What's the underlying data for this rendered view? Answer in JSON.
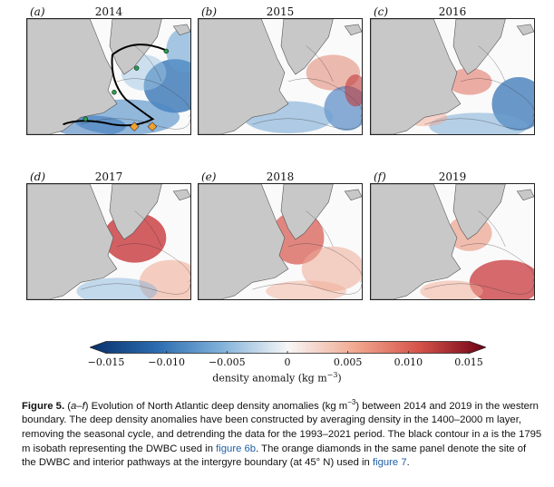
{
  "panels": [
    {
      "label": "(a)",
      "year": "2014"
    },
    {
      "label": "(b)",
      "year": "2015"
    },
    {
      "label": "(c)",
      "year": "2016"
    },
    {
      "label": "(d)",
      "year": "2017"
    },
    {
      "label": "(e)",
      "year": "2018"
    },
    {
      "label": "(f)",
      "year": "2019"
    }
  ],
  "colorbar": {
    "ticks": [
      "−0.015",
      "−0.010",
      "−0.005",
      "0",
      "0.005",
      "0.010",
      "0.015"
    ],
    "label_prefix": "density anomaly (kg m",
    "label_exp": "−3",
    "label_suffix": ")",
    "colors": {
      "neg_strong": "#1f4e8c",
      "neg_mid": "#6fa3d2",
      "neutral": "#f7f7f7",
      "pos_mid": "#e7927c",
      "pos_strong": "#a5142b"
    }
  },
  "caption": {
    "fig": "Figure 5.",
    "p1": " (",
    "p1i": "a–f",
    "p2": ") Evolution of North Atlantic deep density anomalies (kg m",
    "p2exp": "−3",
    "p3": ") between 2014 and 2019 in the western boundary. The deep density anomalies have been constructed by averaging density in the 1400–2000 m layer, removing the seasonal cycle, and detrending the data for the 1993–2021 period. The black contour in ",
    "p3i": "a",
    "p4": " is the 1795 m isobath representing the DWBC used in ",
    "ref1": "figure 6b",
    "p5": ". The orange diamonds in the same panel denote the site of the DWBC and interior pathways at the intergyre boundary (at 45° N) used in ",
    "ref2": "figure 7",
    "p6": "."
  }
}
